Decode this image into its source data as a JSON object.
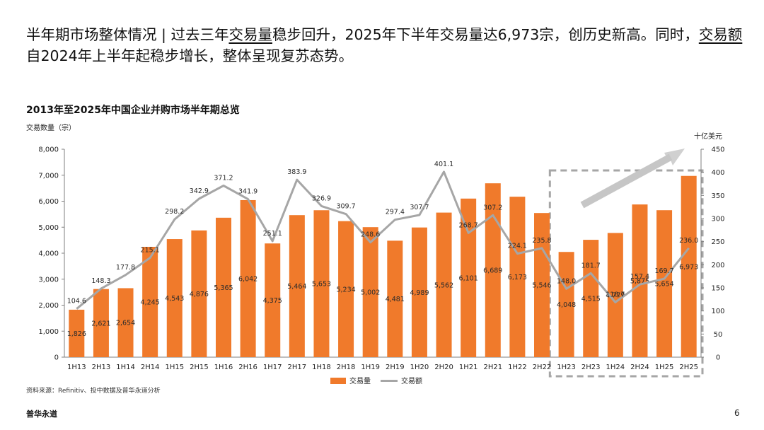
{
  "headline": {
    "part1": "半年期市场整体情况 | 过去三年",
    "part2": "交易量",
    "part3": "稳步回升，2025年下半年交易量达6,973宗，创历史新高。同时，",
    "part4": "交易额",
    "part5": "自2024年上半年起稳步增长，整体呈现复苏态势。"
  },
  "source": "资料来源：Refinitiv、投中数据及普华永道分析",
  "footer": {
    "brand": "普华永道",
    "page": "6"
  },
  "colors": {
    "bar": "#F07A2B",
    "line": "#A6A6A6",
    "axis": "#7F7F7F",
    "highlight": "#A6A6A6"
  },
  "chart_data": {
    "type": "bar",
    "title": "2013年至2025年中国企业并购市场半年期总览",
    "ylabel": "交易数量（宗）",
    "y2label": "十亿美元",
    "ylim": [
      0,
      8000
    ],
    "y2lim": [
      0,
      450
    ],
    "yticks": [
      "0",
      "1,000",
      "2,000",
      "3,000",
      "4,000",
      "5,000",
      "6,000",
      "7,000",
      "8,000"
    ],
    "y2ticks": [
      "0",
      "50",
      "100",
      "150",
      "200",
      "250",
      "300",
      "350",
      "400",
      "450"
    ],
    "categories": [
      "1H13",
      "2H13",
      "1H14",
      "2H14",
      "1H15",
      "2H15",
      "1H16",
      "2H16",
      "1H17",
      "2H17",
      "1H18",
      "2H18",
      "1H19",
      "2H19",
      "1H20",
      "2H20",
      "1H21",
      "2H21",
      "1H22",
      "2H22",
      "1H23",
      "2H23",
      "1H24",
      "2H24",
      "1H25",
      "2H25"
    ],
    "series": [
      {
        "name": "交易量",
        "type": "bar",
        "axis": "left",
        "values": [
          1826,
          2621,
          2654,
          4245,
          4543,
          4876,
          5365,
          6042,
          4375,
          5464,
          5653,
          5234,
          5002,
          4481,
          4989,
          5562,
          6101,
          6689,
          6173,
          5546,
          4048,
          4515,
          4779,
          5875,
          5654,
          6973
        ],
        "labels": [
          "1,826",
          "2,621",
          "2,654",
          "4,245",
          "4,543",
          "4,876",
          "5,365",
          "6,042",
          "4,375",
          "5,464",
          "5,653",
          "5,234",
          "5,002",
          "4,481",
          "4,989",
          "5,562",
          "6,101",
          "6,689",
          "6,173",
          "5,546",
          "4,048",
          "4,515",
          "4,779",
          "5,875",
          "5,654",
          "6,973"
        ]
      },
      {
        "name": "交易额",
        "type": "line",
        "axis": "right",
        "values": [
          104.6,
          148.3,
          177.8,
          215.1,
          298.2,
          342.9,
          371.2,
          341.9,
          251.1,
          383.9,
          326.9,
          309.7,
          248.6,
          297.4,
          307.7,
          401.1,
          268.7,
          307.2,
          224.1,
          235.8,
          148.0,
          181.7,
          118.7,
          157.4,
          169.7,
          236.0
        ],
        "labels": [
          "104.6",
          "148.3",
          "177.8",
          "215.1",
          "298.2",
          "342.9",
          "371.2",
          "341.9",
          "251.1",
          "383.9",
          "326.9",
          "309.7",
          "248.6",
          "297.4",
          "307.7",
          "401.1",
          "268.7",
          "307.2",
          "224.1",
          "235.8",
          "148.0",
          "181.7",
          "118.7",
          "157.4",
          "169.7",
          "236.0"
        ]
      }
    ],
    "highlight": {
      "from": "1H23",
      "to": "2H25",
      "style": "dashed-box",
      "arrow": "upward-trend"
    },
    "legend": {
      "position": "bottom-center",
      "items": [
        "交易量",
        "交易额"
      ]
    }
  }
}
